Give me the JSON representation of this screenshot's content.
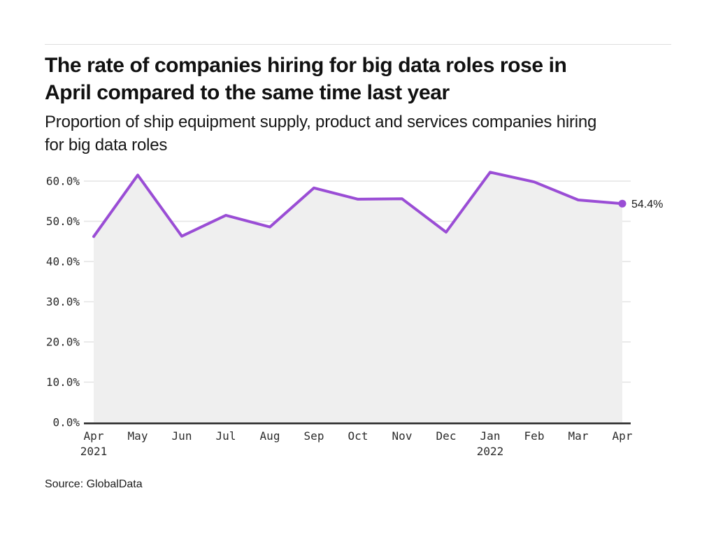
{
  "header": {
    "title_lines": [
      "The rate of companies hiring for big data roles rose in",
      "April compared to the same time last year"
    ],
    "subtitle_lines": [
      "Proportion of ship equipment supply, product and services companies hiring",
      "for big data roles"
    ]
  },
  "source": "Source: GlobalData",
  "chart_data": {
    "type": "area",
    "title": "Proportion of ship equipment supply, product and services companies hiring for big data roles",
    "x": [
      "Apr 2021",
      "May",
      "Jun",
      "Jul",
      "Aug",
      "Sep",
      "Oct",
      "Nov",
      "Dec",
      "Jan 2022",
      "Feb",
      "Mar",
      "Apr"
    ],
    "categories": [
      "Apr",
      "May",
      "Jun",
      "Jul",
      "Aug",
      "Sep",
      "Oct",
      "Nov",
      "Dec",
      "Jan",
      "Feb",
      "Mar",
      "Apr"
    ],
    "year_labels": [
      {
        "index": 0,
        "label": "2021"
      },
      {
        "index": 9,
        "label": "2022"
      }
    ],
    "values": [
      46.2,
      61.5,
      46.3,
      51.5,
      48.6,
      58.3,
      55.5,
      55.6,
      47.3,
      62.2,
      59.8,
      55.3,
      54.4
    ],
    "end_label": "54.4%",
    "yticks": [
      "0.0%",
      "10.0%",
      "20.0%",
      "30.0%",
      "40.0%",
      "50.0%",
      "60.0%"
    ],
    "ytick_values": [
      0,
      10,
      20,
      30,
      40,
      50,
      60
    ],
    "ylim": [
      0,
      65
    ],
    "xlabel": "",
    "ylabel": "",
    "grid": true,
    "legend": false,
    "line_color": "#9a4dd5",
    "area_color": "#efefef",
    "grid_color": "#e4e4e4",
    "axis_color": "#222222",
    "tick_color": "#2b2b2b",
    "end_label_color": "#1a1a1a"
  }
}
